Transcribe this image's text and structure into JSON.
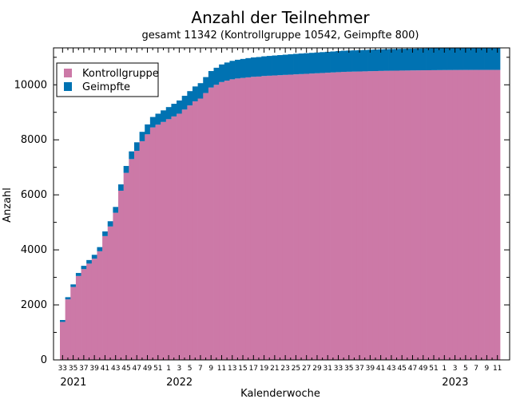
{
  "chart_data": {
    "type": "bar",
    "stacked": true,
    "title": "Anzahl der Teilnehmer",
    "subtitle": "gesamt 11342 (Kontrollgruppe 10542, Geimpfte 800)",
    "xlabel": "Kalenderwoche",
    "ylabel": "Anzahl",
    "ylim": [
      0,
      11342
    ],
    "yticks": [
      0,
      2000,
      4000,
      6000,
      8000,
      10000
    ],
    "legend_position": "top-left",
    "grid": false,
    "categories": [
      "33",
      "34",
      "35",
      "36",
      "37",
      "38",
      "39",
      "40",
      "41",
      "42",
      "43",
      "44",
      "45",
      "46",
      "47",
      "48",
      "49",
      "50",
      "51",
      "52",
      "1",
      "2",
      "3",
      "4",
      "5",
      "6",
      "7",
      "8",
      "9",
      "10",
      "11",
      "12",
      "13",
      "14",
      "15",
      "16",
      "17",
      "18",
      "19",
      "20",
      "21",
      "22",
      "23",
      "24",
      "25",
      "26",
      "27",
      "28",
      "29",
      "30",
      "31",
      "32",
      "33",
      "34",
      "35",
      "36",
      "37",
      "38",
      "39",
      "40",
      "41",
      "42",
      "43",
      "44",
      "45",
      "46",
      "47",
      "48",
      "49",
      "50",
      "51",
      "52",
      "1",
      "2",
      "3",
      "4",
      "5",
      "6",
      "7",
      "8",
      "9",
      "10",
      "11"
    ],
    "x_tick_labels": [
      "33",
      "35",
      "37",
      "39",
      "41",
      "43",
      "45",
      "47",
      "49",
      "51",
      "1",
      "3",
      "5",
      "7",
      "9",
      "11",
      "13",
      "15",
      "17",
      "19",
      "21",
      "23",
      "25",
      "27",
      "29",
      "31",
      "33",
      "35",
      "37",
      "39",
      "41",
      "43",
      "45",
      "47",
      "49",
      "51",
      "1",
      "3",
      "5",
      "7",
      "9",
      "11"
    ],
    "year_labels": [
      {
        "label": "2021",
        "category_index": 0
      },
      {
        "label": "2022",
        "category_index": 20
      },
      {
        "label": "2023",
        "category_index": 72
      }
    ],
    "series": [
      {
        "name": "Kontrollgruppe",
        "color": "#cc79a7",
        "values": [
          1380,
          2200,
          2650,
          3050,
          3300,
          3500,
          3680,
          3950,
          4500,
          4850,
          5350,
          6150,
          6800,
          7300,
          7600,
          7950,
          8200,
          8450,
          8550,
          8650,
          8750,
          8850,
          8950,
          9100,
          9250,
          9400,
          9500,
          9700,
          9900,
          10000,
          10100,
          10150,
          10200,
          10230,
          10250,
          10270,
          10290,
          10300,
          10320,
          10330,
          10340,
          10350,
          10360,
          10370,
          10380,
          10390,
          10400,
          10410,
          10420,
          10430,
          10440,
          10450,
          10460,
          10470,
          10475,
          10480,
          10485,
          10490,
          10495,
          10500,
          10505,
          10510,
          10512,
          10515,
          10518,
          10520,
          10523,
          10525,
          10528,
          10530,
          10532,
          10534,
          10536,
          10537,
          10538,
          10539,
          10540,
          10540,
          10541,
          10541,
          10542,
          10542,
          10542
        ]
      },
      {
        "name": "Geimpfte",
        "color": "#0072b2",
        "values": [
          70,
          80,
          95,
          110,
          120,
          130,
          140,
          150,
          170,
          190,
          210,
          230,
          250,
          280,
          310,
          340,
          360,
          380,
          400,
          420,
          440,
          460,
          480,
          500,
          520,
          540,
          560,
          580,
          600,
          620,
          640,
          660,
          670,
          680,
          690,
          700,
          705,
          710,
          715,
          720,
          725,
          730,
          735,
          740,
          745,
          748,
          750,
          752,
          755,
          758,
          760,
          762,
          765,
          768,
          770,
          772,
          775,
          777,
          780,
          782,
          784,
          786,
          788,
          789,
          790,
          791,
          792,
          793,
          794,
          795,
          796,
          796,
          797,
          797,
          798,
          798,
          799,
          799,
          799,
          800,
          800,
          800,
          800
        ]
      }
    ]
  }
}
